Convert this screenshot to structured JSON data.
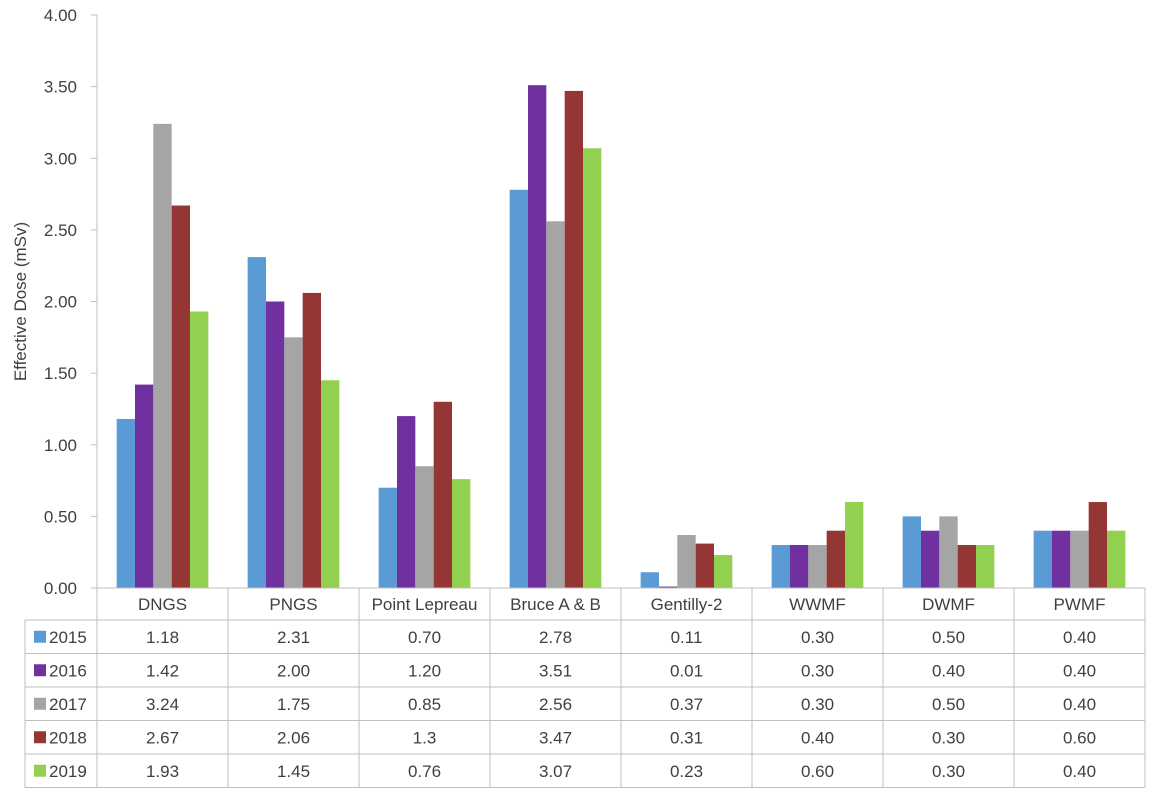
{
  "chart_data": {
    "type": "bar",
    "title": "",
    "ylabel": "Effective Dose (mSv)",
    "xlabel": "",
    "ylim": [
      0,
      4
    ],
    "yticks": [
      "0.00",
      "0.50",
      "1.00",
      "1.50",
      "2.00",
      "2.50",
      "3.00",
      "3.50",
      "4.00"
    ],
    "categories": [
      "DNGS",
      "PNGS",
      "Point Lepreau",
      "Bruce A & B",
      "Gentilly-2",
      "WWMF",
      "DWMF",
      "PWMF"
    ],
    "grid": false,
    "legend": "data-table",
    "series": [
      {
        "name": "2015",
        "color": "#5b9bd5",
        "values": [
          1.18,
          2.31,
          0.7,
          2.78,
          0.11,
          0.3,
          0.5,
          0.4
        ],
        "labels": [
          "1.18",
          "2.31",
          "0.70",
          "2.78",
          "0.11",
          "0.30",
          "0.50",
          "0.40"
        ]
      },
      {
        "name": "2016",
        "color": "#7030a0",
        "values": [
          1.42,
          2.0,
          1.2,
          3.51,
          0.01,
          0.3,
          0.4,
          0.4
        ],
        "labels": [
          "1.42",
          "2.00",
          "1.20",
          "3.51",
          "0.01",
          "0.30",
          "0.40",
          "0.40"
        ]
      },
      {
        "name": "2017",
        "color": "#a5a5a5",
        "values": [
          3.24,
          1.75,
          0.85,
          2.56,
          0.37,
          0.3,
          0.5,
          0.4
        ],
        "labels": [
          "3.24",
          "1.75",
          "0.85",
          "2.56",
          "0.37",
          "0.30",
          "0.50",
          "0.40"
        ]
      },
      {
        "name": "2018",
        "color": "#943634",
        "values": [
          2.67,
          2.06,
          1.3,
          3.47,
          0.31,
          0.4,
          0.3,
          0.6
        ],
        "labels": [
          "2.67",
          "2.06",
          "1.3",
          "3.47",
          "0.31",
          "0.40",
          "0.30",
          "0.60"
        ]
      },
      {
        "name": "2019",
        "color": "#92d050",
        "values": [
          1.93,
          1.45,
          0.76,
          3.07,
          0.23,
          0.6,
          0.3,
          0.4
        ],
        "labels": [
          "1.93",
          "1.45",
          "0.76",
          "3.07",
          "0.23",
          "0.60",
          "0.30",
          "0.40"
        ]
      }
    ]
  }
}
